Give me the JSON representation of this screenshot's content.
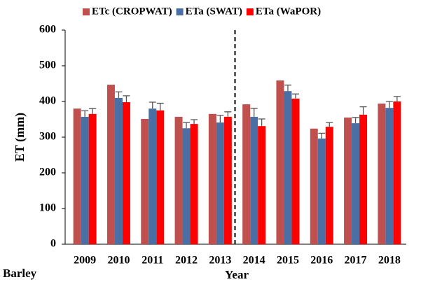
{
  "chart_data": {
    "type": "bar",
    "y_label": "ET (mm)",
    "x_label": "Year",
    "annotation": "Barley",
    "categories": [
      "2009",
      "2010",
      "2011",
      "2012",
      "2013",
      "2014",
      "2015",
      "2016",
      "2017",
      "2018"
    ],
    "series": [
      {
        "name": "ETc (CROPWAT)",
        "color": "#c0504d",
        "values": [
          380,
          447,
          351,
          357,
          365,
          392,
          459,
          324,
          355,
          394
        ]
      },
      {
        "name": "ETa (SWAT)",
        "color": "#4a6fa5",
        "values": [
          357,
          410,
          380,
          325,
          341,
          357,
          429,
          296,
          339,
          382
        ],
        "errors": [
          17,
          17,
          18,
          16,
          20,
          24,
          17,
          15,
          16,
          18
        ]
      },
      {
        "name": "ETa (WaPOR)",
        "color": "#ff0000",
        "values": [
          365,
          398,
          375,
          337,
          357,
          331,
          408,
          329,
          363,
          400
        ],
        "errors": [
          15,
          18,
          20,
          12,
          14,
          20,
          13,
          12,
          22,
          14
        ]
      }
    ],
    "ylim": [
      0,
      600
    ],
    "yticks": [
      0,
      100,
      200,
      300,
      400,
      500,
      600
    ],
    "grid": false
  }
}
